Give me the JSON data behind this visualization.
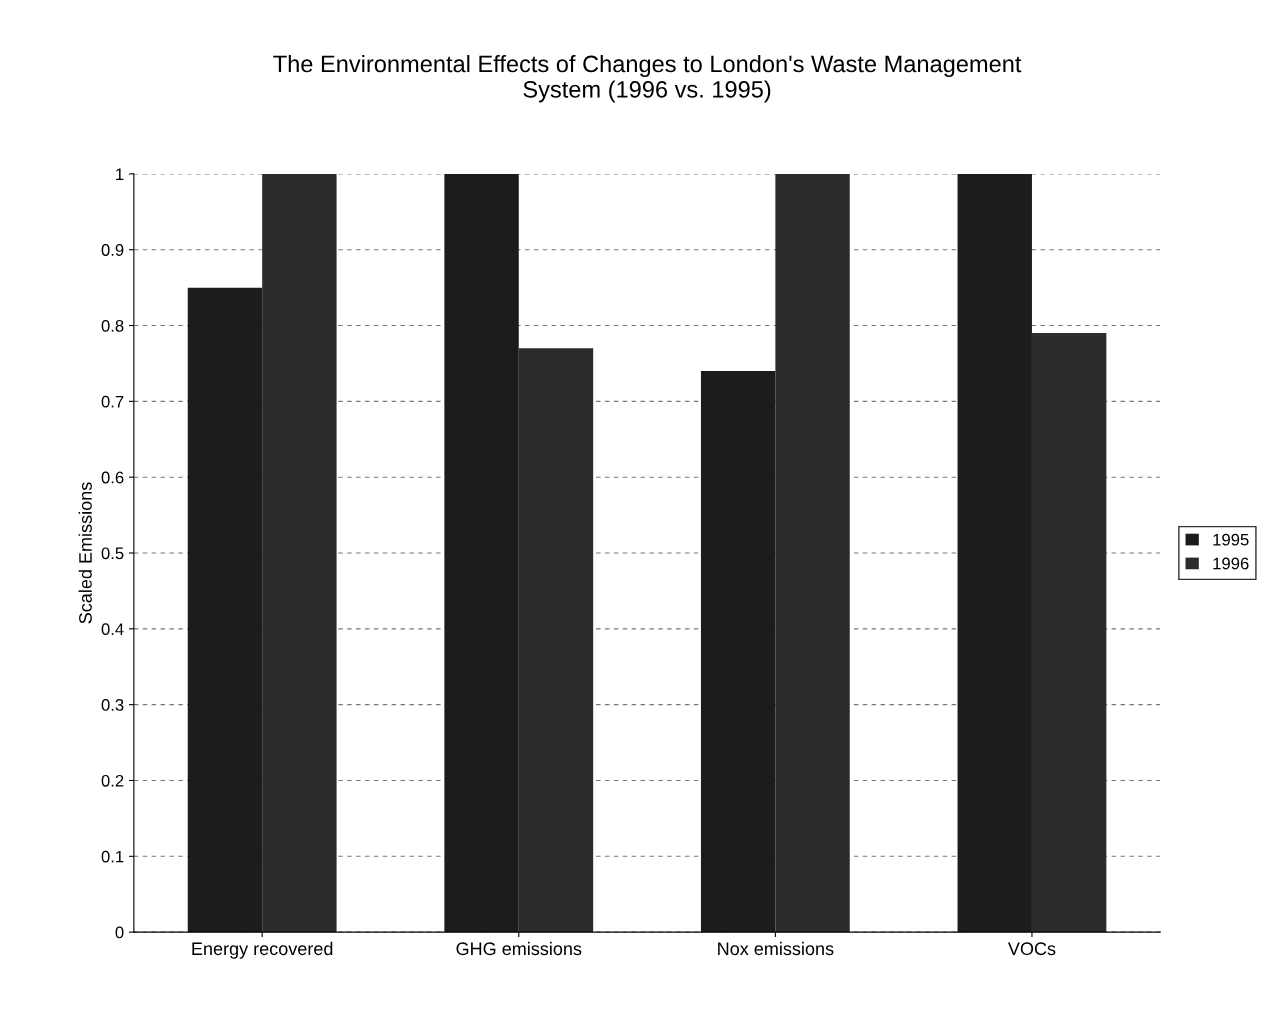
{
  "chart_data": {
    "type": "bar",
    "title": "The Environmental Effects of Changes to London's Waste Management\nSystem (1996 vs. 1995)",
    "ylabel": "Scaled Emissions",
    "categories": [
      "Energy recovered",
      "GHG emissions",
      "Nox emissions",
      "VOCs"
    ],
    "series": [
      {
        "name": "1995",
        "color": "#1c1c1c",
        "values": [
          0.85,
          1.0,
          0.74,
          1.0
        ]
      },
      {
        "name": "1996",
        "color": "#2c2c2c",
        "values": [
          1.0,
          0.77,
          1.0,
          0.79
        ]
      }
    ],
    "ylim": [
      0,
      1
    ],
    "yticks": [
      0,
      0.1,
      0.2,
      0.3,
      0.4,
      0.5,
      0.6,
      0.7,
      0.8,
      0.9,
      1
    ],
    "grid": "y",
    "legend": "right"
  }
}
